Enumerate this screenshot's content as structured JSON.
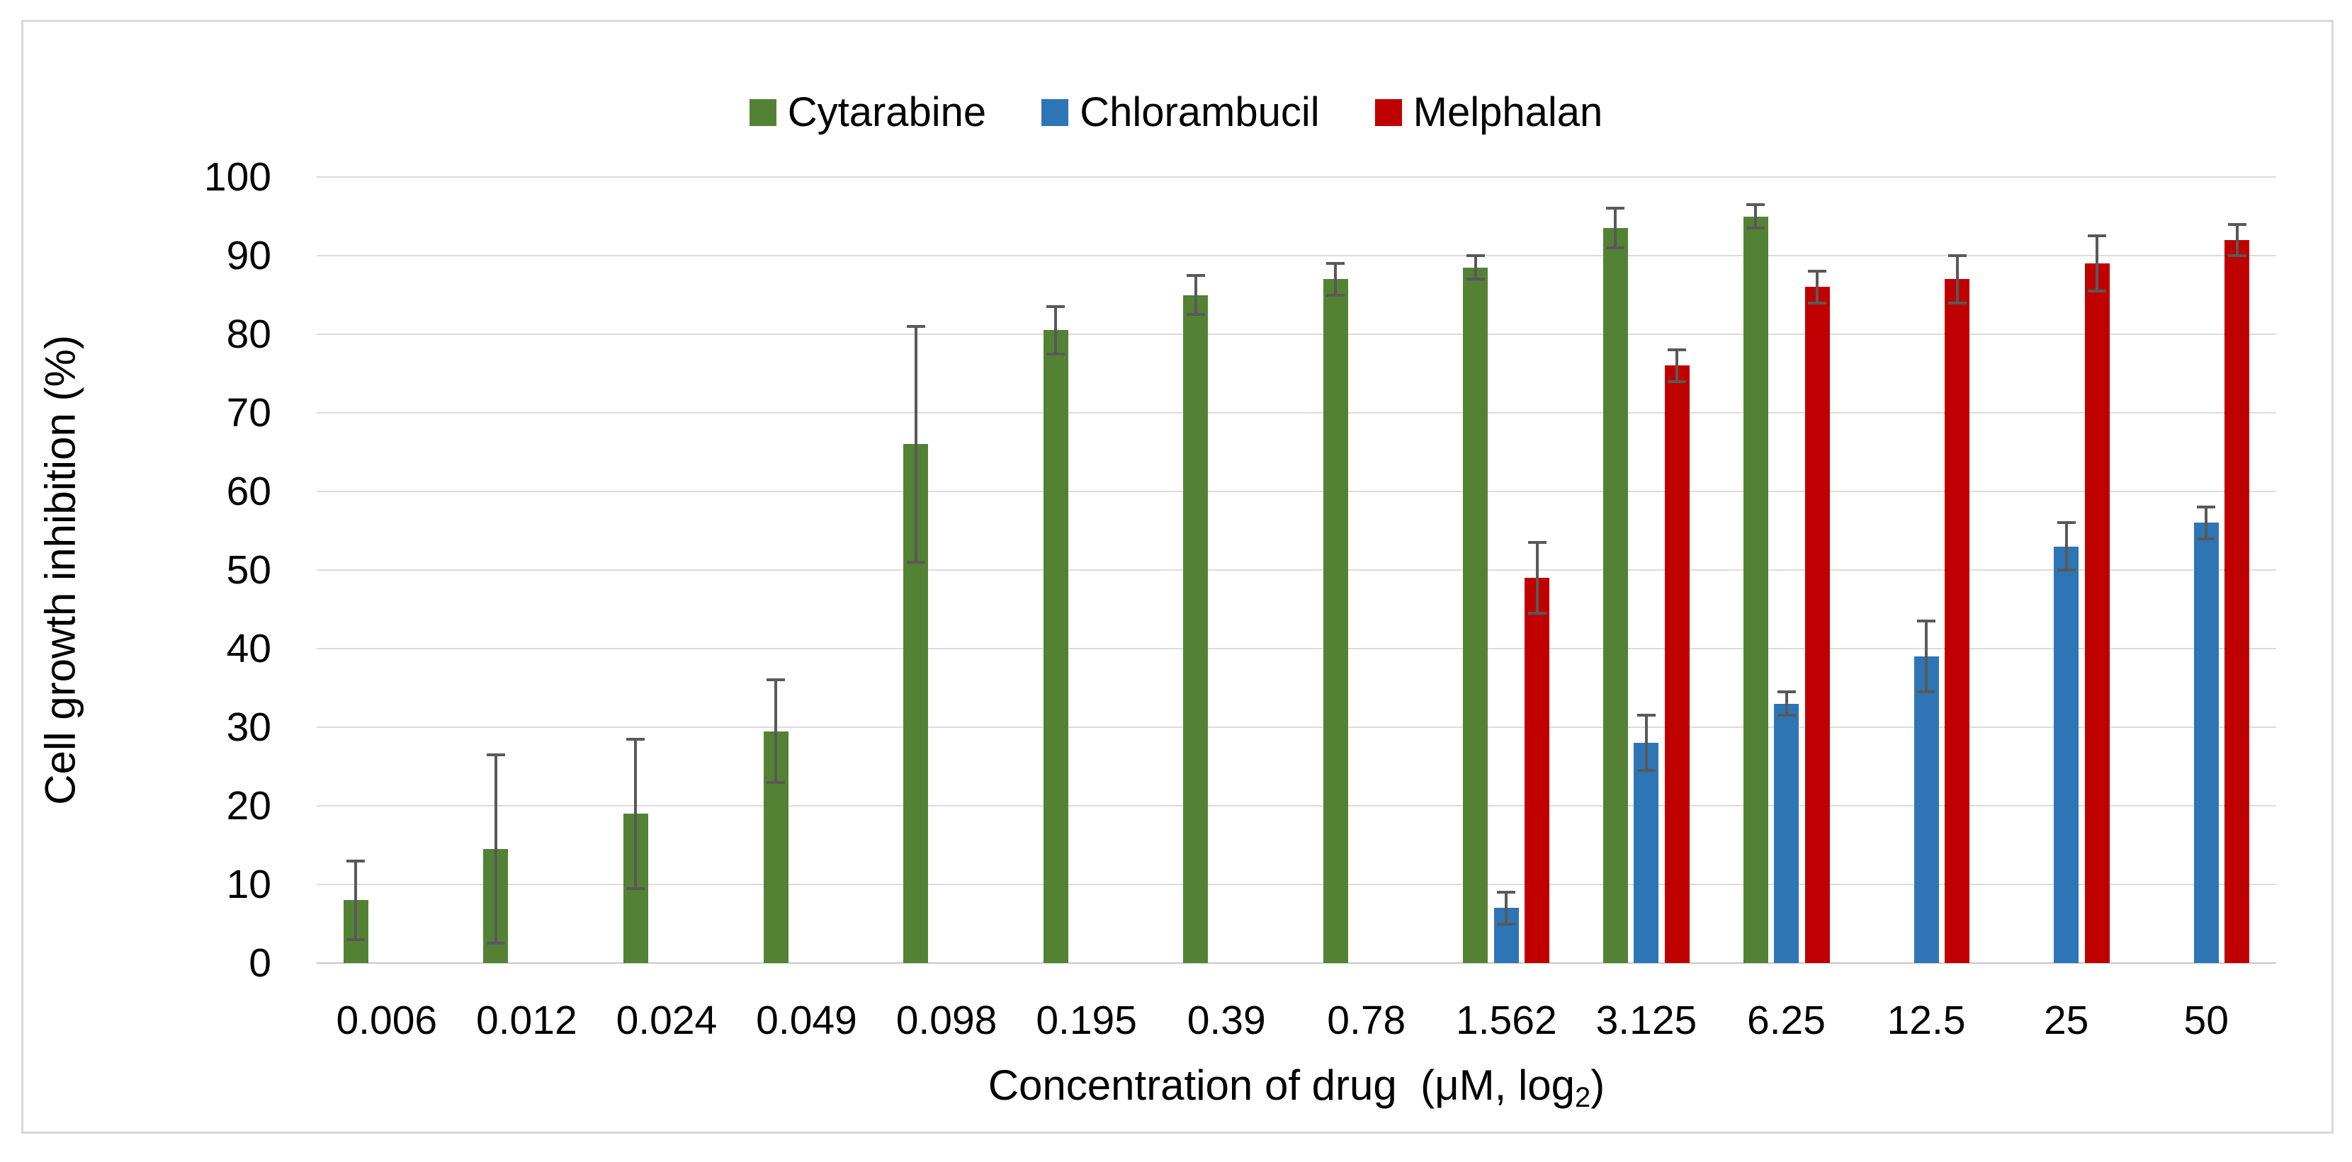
{
  "figure": {
    "y_axis_title": "Cell growth inhibition (%)",
    "x_title": {
      "main": "Concentration of drug  (μM, log",
      "sub": "2",
      "close": ")"
    }
  },
  "legend": [
    {
      "label": "Cytarabine",
      "color": "#548235",
      "swatch_icon": "green-square-icon"
    },
    {
      "label": "Chlorambucil",
      "color": "#2E75B6",
      "swatch_icon": "blue-square-icon"
    },
    {
      "label": "Melphalan",
      "color": "#C00000",
      "swatch_icon": "red-square-icon"
    }
  ],
  "colors": {
    "gridline": "#DCDCDC",
    "axis_line": "#C8C8C8",
    "error_bar": "#595959",
    "frame_border": "#D9D9D9",
    "text": "#000000"
  },
  "chart_data": {
    "type": "bar",
    "title": "",
    "xlabel": "Concentration of drug (μM, log₂)",
    "ylabel": "Cell growth inhibition (%)",
    "ylim": [
      0,
      100
    ],
    "ytick_step": 10,
    "y_ticks": [
      "0",
      "10",
      "20",
      "30",
      "40",
      "50",
      "60",
      "70",
      "80",
      "90",
      "100"
    ],
    "grid": true,
    "legend_position": "top-center",
    "error_bars": true,
    "categories": [
      "0.006",
      "0.012",
      "0.024",
      "0.049",
      "0.098",
      "0.195",
      "0.39",
      "0.78",
      "1.562",
      "3.125",
      "6.25",
      "12.5",
      "25",
      "50"
    ],
    "series": [
      {
        "name": "Cytarabine",
        "color": "#548235",
        "values": [
          8,
          14.5,
          19,
          29.5,
          66,
          80.5,
          85,
          87,
          88.5,
          93.5,
          95,
          null,
          null,
          null
        ],
        "errors": [
          5,
          12,
          9.5,
          6.5,
          15,
          3,
          2.5,
          2,
          1.5,
          2.5,
          1.5,
          null,
          null,
          null
        ]
      },
      {
        "name": "Chlorambucil",
        "color": "#2E75B6",
        "values": [
          null,
          null,
          null,
          null,
          null,
          null,
          null,
          null,
          7,
          28,
          33,
          39,
          53,
          56
        ],
        "errors": [
          null,
          null,
          null,
          null,
          null,
          null,
          null,
          null,
          2,
          3.5,
          1.5,
          4.5,
          3,
          2
        ]
      },
      {
        "name": "Melphalan",
        "color": "#C00000",
        "values": [
          null,
          null,
          null,
          null,
          null,
          null,
          null,
          null,
          49,
          76,
          86,
          87,
          89,
          92
        ],
        "errors": [
          null,
          null,
          null,
          null,
          null,
          null,
          null,
          null,
          4.5,
          2,
          2,
          3,
          3.5,
          2
        ]
      }
    ]
  }
}
